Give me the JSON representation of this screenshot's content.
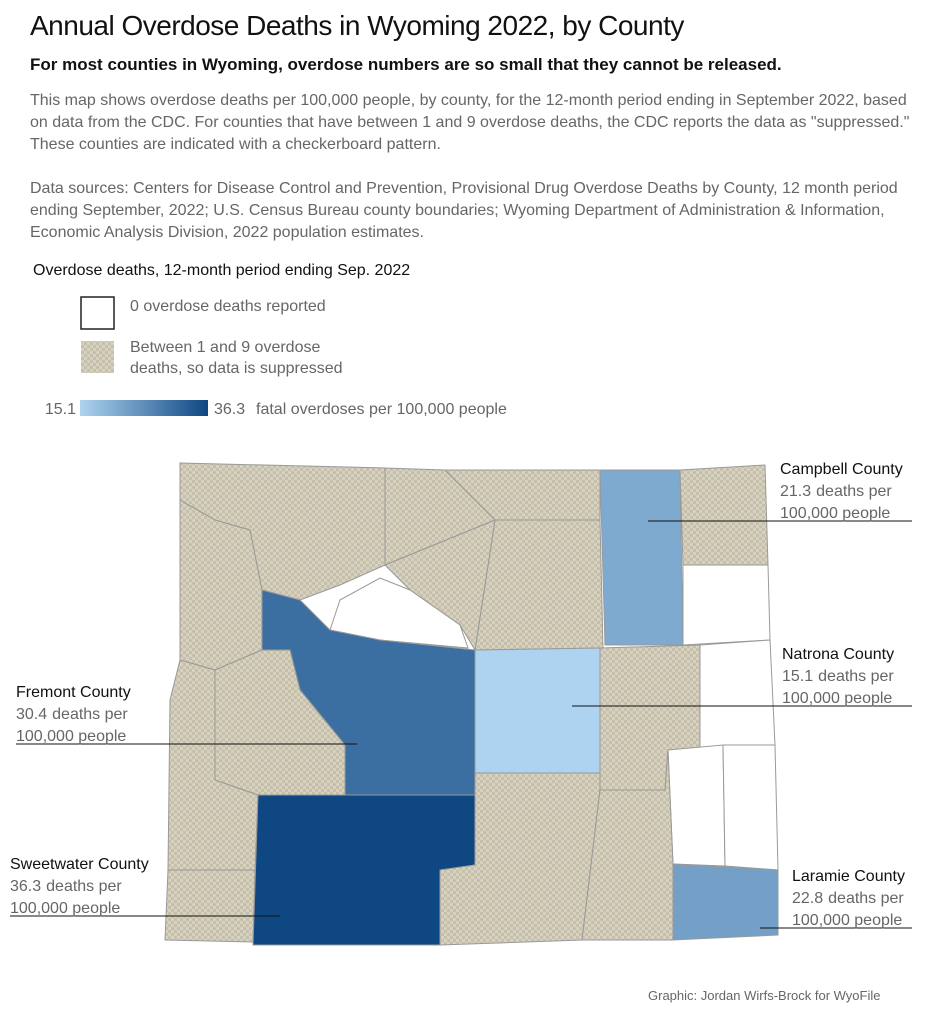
{
  "header": {
    "title": "Annual Overdose Deaths in Wyoming 2022, by County",
    "subtitle": "For most counties in Wyoming, overdose numbers are so small that they cannot be released.",
    "description": "This map shows overdose deaths per 100,000 people, by county, for the 12-month period ending in September 2022, based on data from the CDC. For counties that have between 1 and 9 overdose deaths, the CDC reports the data as \"suppressed.\" These counties are indicated with a checkerboard pattern.",
    "sources": "Data sources: Centers for Disease Control and Prevention, Provisional Drug Overdose Deaths by County, 12 month period ending September, 2022; U.S. Census Bureau county boundaries; Wyoming Department of Administration & Information, Economic Analysis Division, 2022 population estimates."
  },
  "legend": {
    "title": "Overdose deaths, 12-month period ending Sep. 2022",
    "items": [
      {
        "label": "0 overdose deaths reported"
      },
      {
        "label": "Between 1 and 9 overdose deaths, so data is suppressed"
      }
    ],
    "scale": {
      "min": 15.1,
      "max": 36.3,
      "min_color": "#aed3f0",
      "max_color": "#0e4782",
      "label": "fatal overdoses per 100,000 people"
    }
  },
  "annotations": [
    {
      "name": "Campbell County",
      "value": 21.3,
      "unit": "deaths per",
      "unit2": "100,000 people"
    },
    {
      "name": "Natrona County",
      "value": 15.1,
      "unit": "deaths per",
      "unit2": "100,000 people"
    },
    {
      "name": "Fremont County",
      "value": 30.4,
      "unit": "deaths per",
      "unit2": "100,000 people"
    },
    {
      "name": "Sweetwater County",
      "value": 36.3,
      "unit": "deaths per",
      "unit2": "100,000 people"
    },
    {
      "name": "Laramie County",
      "value": 22.8,
      "unit": "deaths per",
      "unit2": "100,000 people"
    }
  ],
  "credit": "Graphic: Jordan Wirfs-Brock for WyoFile"
}
